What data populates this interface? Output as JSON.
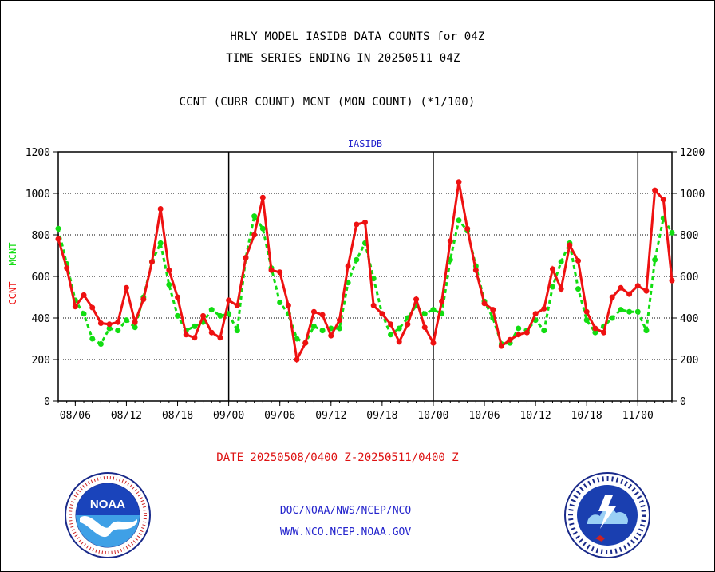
{
  "header": {
    "line1": "HRLY MODEL IASIDB DATA COUNTS for 04Z",
    "line2": "TIME SERIES ENDING IN 20250511 04Z",
    "line3": "CCNT (CURR COUNT) MCNT (MON COUNT) (*1/100)"
  },
  "footer": {
    "date_range": "DATE 20250508/0400 Z-20250511/0400 Z",
    "org": "DOC/NOAA/NWS/NCEP/NCO",
    "url": "WWW.NCO.NCEP.NOAA.GOV"
  },
  "colors": {
    "ccnt": "#ee1111",
    "mcnt": "#11dd11",
    "panel_title": "#2222cc"
  },
  "icons": [
    "noaa-logo-icon",
    "nws-logo-icon"
  ],
  "chart_data": {
    "type": "line",
    "title": "IASIDB",
    "ylabel_left": [
      "CCNT",
      "MCNT"
    ],
    "ylim": [
      0,
      1200
    ],
    "yticks": [
      0,
      200,
      400,
      600,
      800,
      1000,
      1200
    ],
    "grid": true,
    "x_tick_labels": [
      "08/06",
      "08/12",
      "08/18",
      "09/00",
      "09/06",
      "09/12",
      "09/18",
      "10/00",
      "10/06",
      "10/12",
      "10/18",
      "11/00"
    ],
    "x_tick_hours": [
      2,
      8,
      14,
      20,
      26,
      32,
      38,
      44,
      50,
      56,
      62,
      68
    ],
    "day_boundaries_hours": [
      20,
      44,
      68
    ],
    "x_range_hours": [
      0,
      72
    ],
    "series": [
      {
        "name": "CCNT",
        "values": [
          780,
          640,
          455,
          510,
          450,
          375,
          370,
          380,
          545,
          380,
          490,
          670,
          925,
          630,
          500,
          320,
          305,
          410,
          330,
          305,
          485,
          460,
          690,
          800,
          980,
          630,
          620,
          460,
          200,
          280,
          430,
          415,
          315,
          390,
          650,
          850,
          860,
          460,
          420,
          370,
          285,
          370,
          490,
          355,
          280,
          480,
          770,
          1055,
          830,
          630,
          470,
          440,
          265,
          295,
          320,
          330,
          420,
          445,
          635,
          540,
          750,
          675,
          430,
          350,
          330,
          500,
          545,
          515,
          555,
          530,
          1015,
          970,
          580
        ]
      },
      {
        "name": "MCNT",
        "values": [
          830,
          660,
          485,
          420,
          300,
          275,
          350,
          340,
          390,
          355,
          500,
          670,
          760,
          560,
          410,
          340,
          360,
          380,
          440,
          410,
          420,
          340,
          690,
          890,
          830,
          640,
          475,
          420,
          300,
          280,
          360,
          340,
          350,
          350,
          570,
          680,
          760,
          590,
          420,
          320,
          350,
          400,
          460,
          420,
          440,
          420,
          680,
          870,
          820,
          650,
          480,
          400,
          275,
          280,
          350,
          340,
          390,
          340,
          550,
          670,
          760,
          540,
          390,
          330,
          360,
          400,
          440,
          430,
          430,
          340,
          680,
          880,
          810
        ]
      }
    ]
  }
}
